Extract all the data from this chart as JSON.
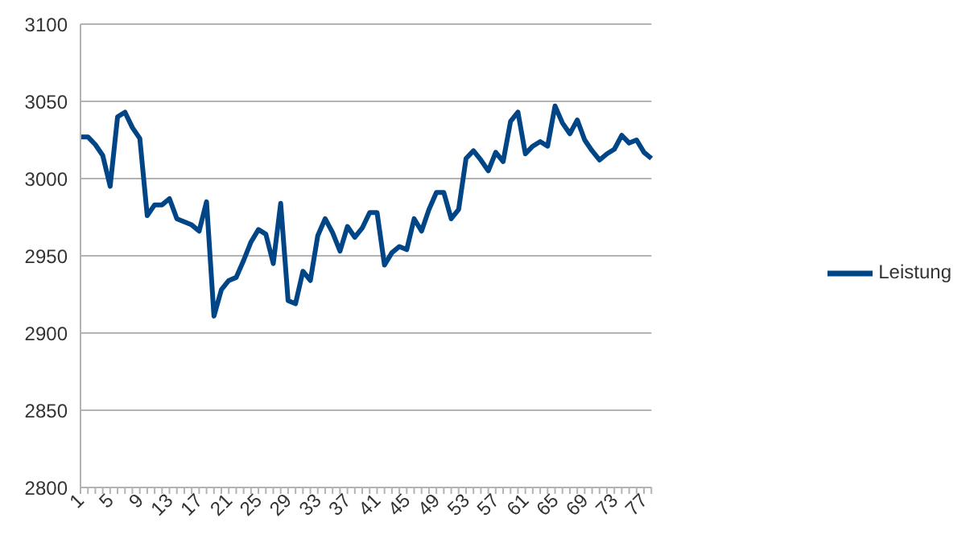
{
  "chart_data": {
    "type": "line",
    "categories": [
      "1",
      null,
      null,
      null,
      "5",
      null,
      null,
      null,
      "9",
      null,
      null,
      null,
      "13",
      null,
      null,
      null,
      "17",
      null,
      null,
      null,
      "21",
      null,
      null,
      null,
      "25",
      null,
      null,
      null,
      "29",
      null,
      null,
      null,
      "33",
      null,
      null,
      null,
      "37",
      null,
      null,
      null,
      "41",
      null,
      null,
      null,
      "45",
      null,
      null,
      null,
      "49",
      null,
      null,
      null,
      "53",
      null,
      null,
      null,
      "57",
      null,
      null,
      null,
      "61",
      null,
      null,
      null,
      "65",
      null,
      null,
      null,
      "69",
      null,
      null,
      null,
      "73",
      null,
      null,
      null,
      "77",
      null
    ],
    "series": [
      {
        "name": "Leistung",
        "color": "#004586",
        "values": [
          3027,
          3027,
          3022,
          3015,
          2995,
          3040,
          3043,
          3033,
          3026,
          2976,
          2983,
          2983,
          2987,
          2974,
          2972,
          2970,
          2966,
          2985,
          2911,
          2928,
          2934,
          2936,
          2947,
          2959,
          2967,
          2964,
          2945,
          2984,
          2921,
          2919,
          2940,
          2934,
          2963,
          2974,
          2965,
          2953,
          2969,
          2962,
          2968,
          2978,
          2978,
          2944,
          2952,
          2956,
          2954,
          2974,
          2966,
          2980,
          2991,
          2991,
          2974,
          2980,
          3013,
          3018,
          3012,
          3005,
          3017,
          3011,
          3037,
          3043,
          3016,
          3021,
          3024,
          3021,
          3047,
          3036,
          3029,
          3038,
          3025,
          3018,
          3012,
          3016,
          3019,
          3028,
          3023,
          3025,
          3017,
          3013
        ]
      }
    ],
    "ylim": [
      2800,
      3100
    ],
    "yticks": [
      2800,
      2850,
      2900,
      2950,
      3000,
      3050,
      3100
    ],
    "grid": "y",
    "legend": "right",
    "marker": "none",
    "line_style": "solid"
  }
}
